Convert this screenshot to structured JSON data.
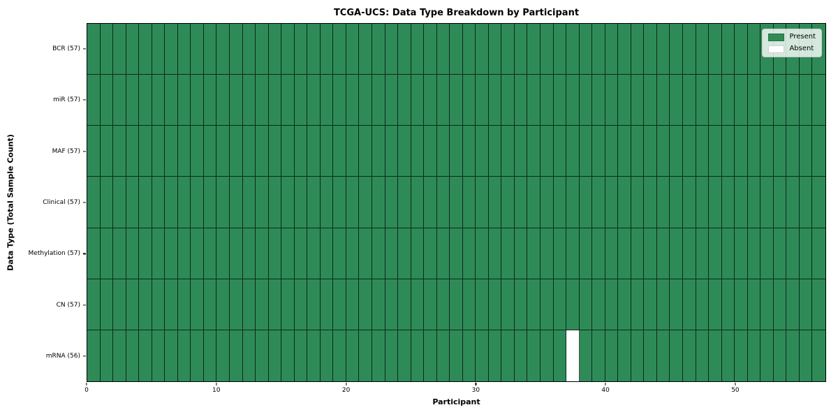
{
  "chart_data": {
    "type": "heatmap",
    "title": "TCGA-UCS: Data Type Breakdown by Participant",
    "xlabel": "Participant",
    "ylabel": "Data Type (Total Sample Count)",
    "n_participants": 57,
    "xlim": [
      0,
      57
    ],
    "x_ticks": [
      0,
      10,
      20,
      30,
      40,
      50
    ],
    "grid_lines": true,
    "rows": [
      {
        "label": "BCR (57)",
        "data_type": "BCR",
        "present_count": 57,
        "absent_participants": []
      },
      {
        "label": "miR (57)",
        "data_type": "miR",
        "present_count": 57,
        "absent_participants": []
      },
      {
        "label": "MAF (57)",
        "data_type": "MAF",
        "present_count": 57,
        "absent_participants": []
      },
      {
        "label": "Clinical (57)",
        "data_type": "Clinical",
        "present_count": 57,
        "absent_participants": []
      },
      {
        "label": "Methylation (57)",
        "data_type": "Methylation",
        "present_count": 57,
        "absent_participants": []
      },
      {
        "label": "CN (57)",
        "data_type": "CN",
        "present_count": 57,
        "absent_participants": []
      },
      {
        "label": "mRNA (56)",
        "data_type": "mRNA",
        "present_count": 56,
        "absent_participants": [
          37
        ]
      }
    ],
    "legend": {
      "position": "upper right",
      "items": [
        {
          "label": "Present",
          "color": "#2e8b57"
        },
        {
          "label": "Absent",
          "color": "#ffffff"
        }
      ]
    },
    "colors": {
      "present": "#2e8b57",
      "absent": "#ffffff",
      "cell_edge": "#000000",
      "axes_edge": "#000000",
      "legend_edge": "#cccccc"
    }
  }
}
